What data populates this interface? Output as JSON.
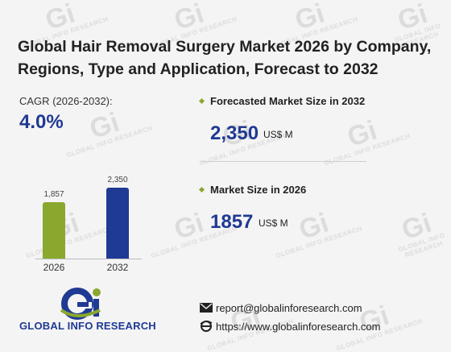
{
  "report": {
    "title": "Global Hair Removal Surgery Market 2026 by Company, Regions, Type and Application, Forecast to 2032"
  },
  "cagr": {
    "label": "CAGR",
    "period": "(2026-2032):",
    "value": "4.0%"
  },
  "chart_data": {
    "type": "bar",
    "categories": [
      "2026",
      "2032"
    ],
    "values": [
      1857,
      2350
    ],
    "value_labels": [
      "1,857",
      "2,350"
    ],
    "colors": [
      "#8aa82e",
      "#1f3a93"
    ],
    "title": "",
    "xlabel": "",
    "ylabel": ""
  },
  "forecast": {
    "label": "Forecasted Market Size in 2032",
    "value": "2,350",
    "unit": "US$ M"
  },
  "current": {
    "label": "Market Size in 2026",
    "value": "1857",
    "unit": "US$ M"
  },
  "brand": {
    "logo_text": "GLOBAL INFO RESEARCH",
    "watermark_letters": "Gi",
    "watermark_text": "GLOBAL INFO RESEARCH"
  },
  "contact": {
    "email": "report@globalinforesearch.com",
    "website": "https://www.globalinforesearch.com",
    "email_icon": "envelope-icon",
    "web_icon": "globe-e-icon"
  },
  "colors": {
    "accent_blue": "#1f3a93",
    "accent_green": "#8aa82e",
    "background": "#f4f4f4"
  }
}
